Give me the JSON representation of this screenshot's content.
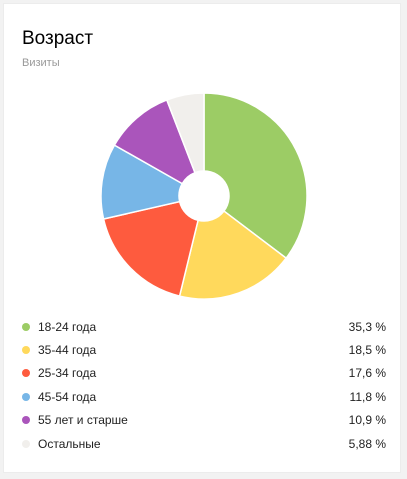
{
  "widget": {
    "title": "Возраст",
    "subtitle": "Визиты"
  },
  "chart_data": {
    "type": "pie",
    "variant": "donut",
    "title": "Возраст",
    "subtitle": "Визиты",
    "categories": [
      "18-24 года",
      "35-44 года",
      "25-34 года",
      "45-54 года",
      "55 лет и старше",
      "Остальные"
    ],
    "values": [
      35.3,
      18.5,
      17.6,
      11.8,
      10.9,
      5.88
    ],
    "value_labels": [
      "35,3 %",
      "18,5 %",
      "17,6 %",
      "11,8 %",
      "10,9 %",
      "5,88 %"
    ],
    "colors": [
      "#9ccc65",
      "#ffd95c",
      "#fe5b3e",
      "#77b6e7",
      "#aa55bb",
      "#f1efec"
    ],
    "legend_position": "bottom"
  },
  "legend": [
    {
      "label": "18-24 года",
      "value": "35,3 %",
      "color": "#9ccc65"
    },
    {
      "label": "35-44 года",
      "value": "18,5 %",
      "color": "#ffd95c"
    },
    {
      "label": "25-34 года",
      "value": "17,6 %",
      "color": "#fe5b3e"
    },
    {
      "label": "45-54 года",
      "value": "11,8 %",
      "color": "#77b6e7"
    },
    {
      "label": "55 лет и старше",
      "value": "10,9 %",
      "color": "#aa55bb"
    },
    {
      "label": "Остальные",
      "value": "5,88 %",
      "color": "#f1efec"
    }
  ]
}
